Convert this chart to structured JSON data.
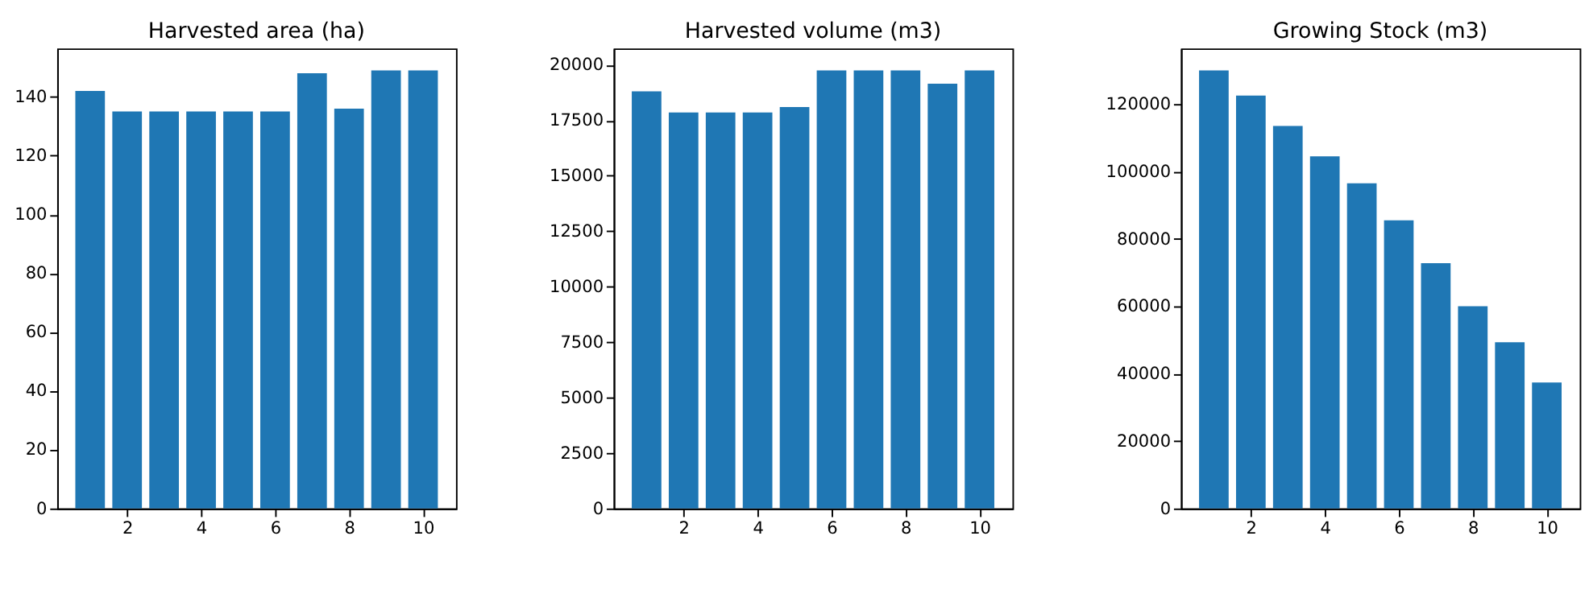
{
  "chart_data": [
    {
      "type": "bar",
      "title": "Harvested area (ha)",
      "x": [
        1,
        2,
        3,
        4,
        5,
        6,
        7,
        8,
        9,
        10
      ],
      "values": [
        142,
        135,
        135,
        135,
        135,
        135,
        148,
        136,
        149,
        149
      ],
      "color": "#1f77b4",
      "xlim": [
        0.11,
        10.89
      ],
      "xticks": [
        2,
        4,
        6,
        8,
        10
      ],
      "ylim": [
        0,
        156.45
      ],
      "yticks": [
        0,
        20,
        40,
        60,
        80,
        100,
        120,
        140
      ],
      "grid": false
    },
    {
      "type": "bar",
      "title": "Harvested volume (m3)",
      "x": [
        1,
        2,
        3,
        4,
        5,
        6,
        7,
        8,
        9,
        10
      ],
      "values": [
        18800,
        17850,
        17850,
        17850,
        18100,
        19750,
        19750,
        19750,
        19150,
        19750
      ],
      "color": "#1f77b4",
      "xlim": [
        0.11,
        10.89
      ],
      "xticks": [
        2,
        4,
        6,
        8,
        10
      ],
      "ylim": [
        0,
        20737.5
      ],
      "yticks": [
        0,
        2500,
        5000,
        7500,
        10000,
        12500,
        15000,
        17500,
        20000
      ],
      "grid": false
    },
    {
      "type": "bar",
      "title": "Growing Stock (m3)",
      "x": [
        1,
        2,
        3,
        4,
        5,
        6,
        7,
        8,
        9,
        10
      ],
      "values": [
        130000,
        122500,
        113500,
        104500,
        96500,
        85500,
        72800,
        60000,
        49300,
        37400
      ],
      "color": "#1f77b4",
      "xlim": [
        0.11,
        10.89
      ],
      "xticks": [
        2,
        4,
        6,
        8,
        10
      ],
      "ylim": [
        0,
        136500
      ],
      "yticks": [
        0,
        20000,
        40000,
        60000,
        80000,
        100000,
        120000
      ],
      "grid": false
    }
  ]
}
